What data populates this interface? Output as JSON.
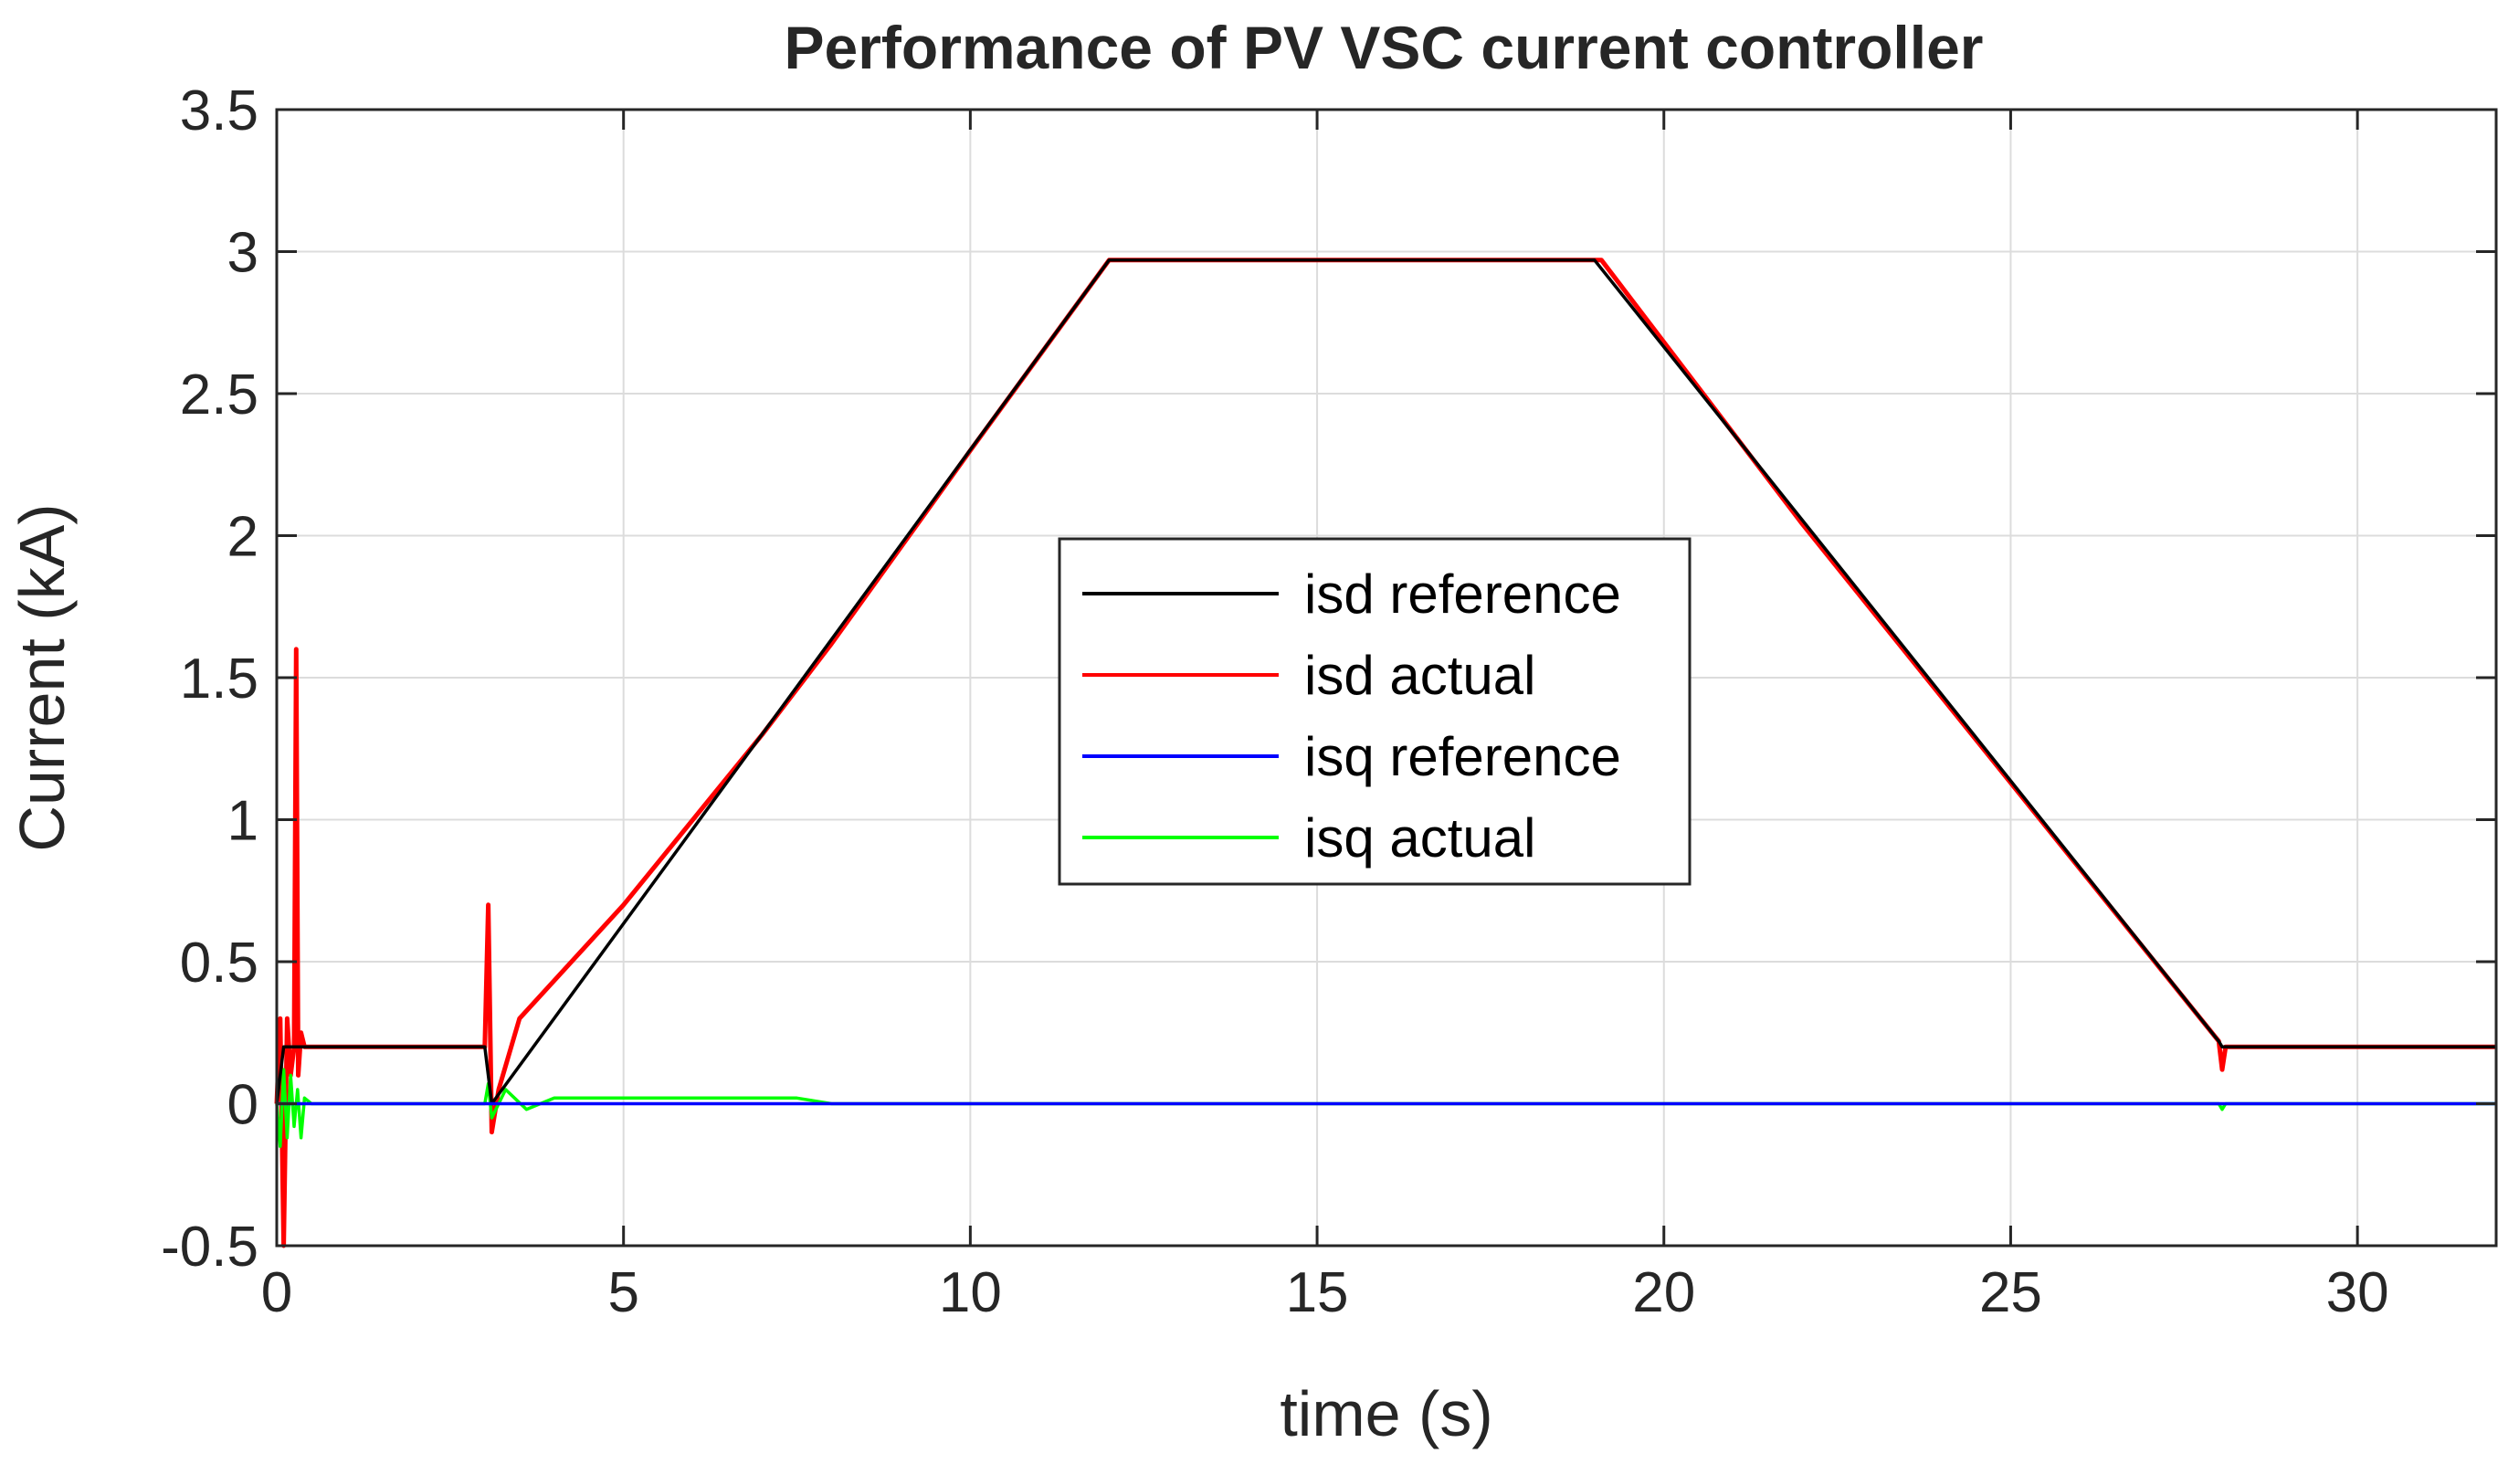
{
  "chart_data": {
    "type": "line",
    "title": "Performance of PV VSC current controller",
    "xlabel": "time (s)",
    "ylabel": "Current (kA)",
    "xlim": [
      0,
      32
    ],
    "ylim": [
      -0.5,
      3.5
    ],
    "xticks": [
      0,
      5,
      10,
      15,
      20,
      25,
      30
    ],
    "xtick_labels": [
      "0",
      "5",
      "10",
      "15",
      "20",
      "25",
      "30"
    ],
    "yticks": [
      -0.5,
      0,
      0.5,
      1,
      1.5,
      2,
      2.5,
      3,
      3.5
    ],
    "ytick_labels": [
      "-0.5",
      "0",
      "0.5",
      "1",
      "1.5",
      "2",
      "2.5",
      "3",
      "3.5"
    ],
    "grid": true,
    "legend": "center",
    "series": [
      {
        "name": "isd reference",
        "color": "#000000",
        "x": [
          0,
          0.1,
          0.3,
          0.5,
          3.0,
          3.1,
          12.0,
          19.0,
          28.0,
          28.05,
          32
        ],
        "y": [
          0,
          0.2,
          0.2,
          0.2,
          0.2,
          0.0,
          2.97,
          2.97,
          0.22,
          0.2,
          0.2
        ]
      },
      {
        "name": "isd actual",
        "color": "#ff0000",
        "x": [
          0,
          0.05,
          0.1,
          0.15,
          0.2,
          0.25,
          0.28,
          0.31,
          0.35,
          0.4,
          0.5,
          1,
          2,
          3.0,
          3.05,
          3.1,
          3.2,
          3.5,
          5,
          7,
          8,
          10,
          12,
          15,
          19,
          19.1,
          22,
          25,
          28,
          28.05,
          28.1,
          28.2,
          30,
          32
        ],
        "y": [
          0,
          0.3,
          -0.5,
          0.3,
          0.1,
          0.2,
          1.6,
          0.1,
          0.25,
          0.2,
          0.2,
          0.2,
          0.2,
          0.2,
          0.7,
          -0.1,
          0.05,
          0.3,
          0.7,
          1.3,
          1.62,
          2.3,
          2.97,
          2.97,
          2.97,
          2.97,
          2.04,
          1.13,
          0.22,
          0.12,
          0.2,
          0.2,
          0.2,
          0.2
        ]
      },
      {
        "name": "isq reference",
        "color": "#0000ff",
        "x": [
          0,
          32
        ],
        "y": [
          0,
          0
        ]
      },
      {
        "name": "isq actual",
        "color": "#00ff00",
        "x": [
          0,
          0.05,
          0.1,
          0.15,
          0.2,
          0.25,
          0.3,
          0.35,
          0.4,
          0.5,
          3.0,
          3.05,
          3.1,
          3.3,
          3.6,
          4,
          7.5,
          8,
          28,
          28.05,
          28.1,
          32
        ],
        "y": [
          0,
          -0.15,
          0.12,
          -0.12,
          0.1,
          -0.08,
          0.05,
          -0.12,
          0.02,
          0,
          0,
          0.07,
          -0.05,
          0.05,
          -0.02,
          0.02,
          0.02,
          0,
          0,
          -0.02,
          0,
          0
        ]
      }
    ]
  }
}
